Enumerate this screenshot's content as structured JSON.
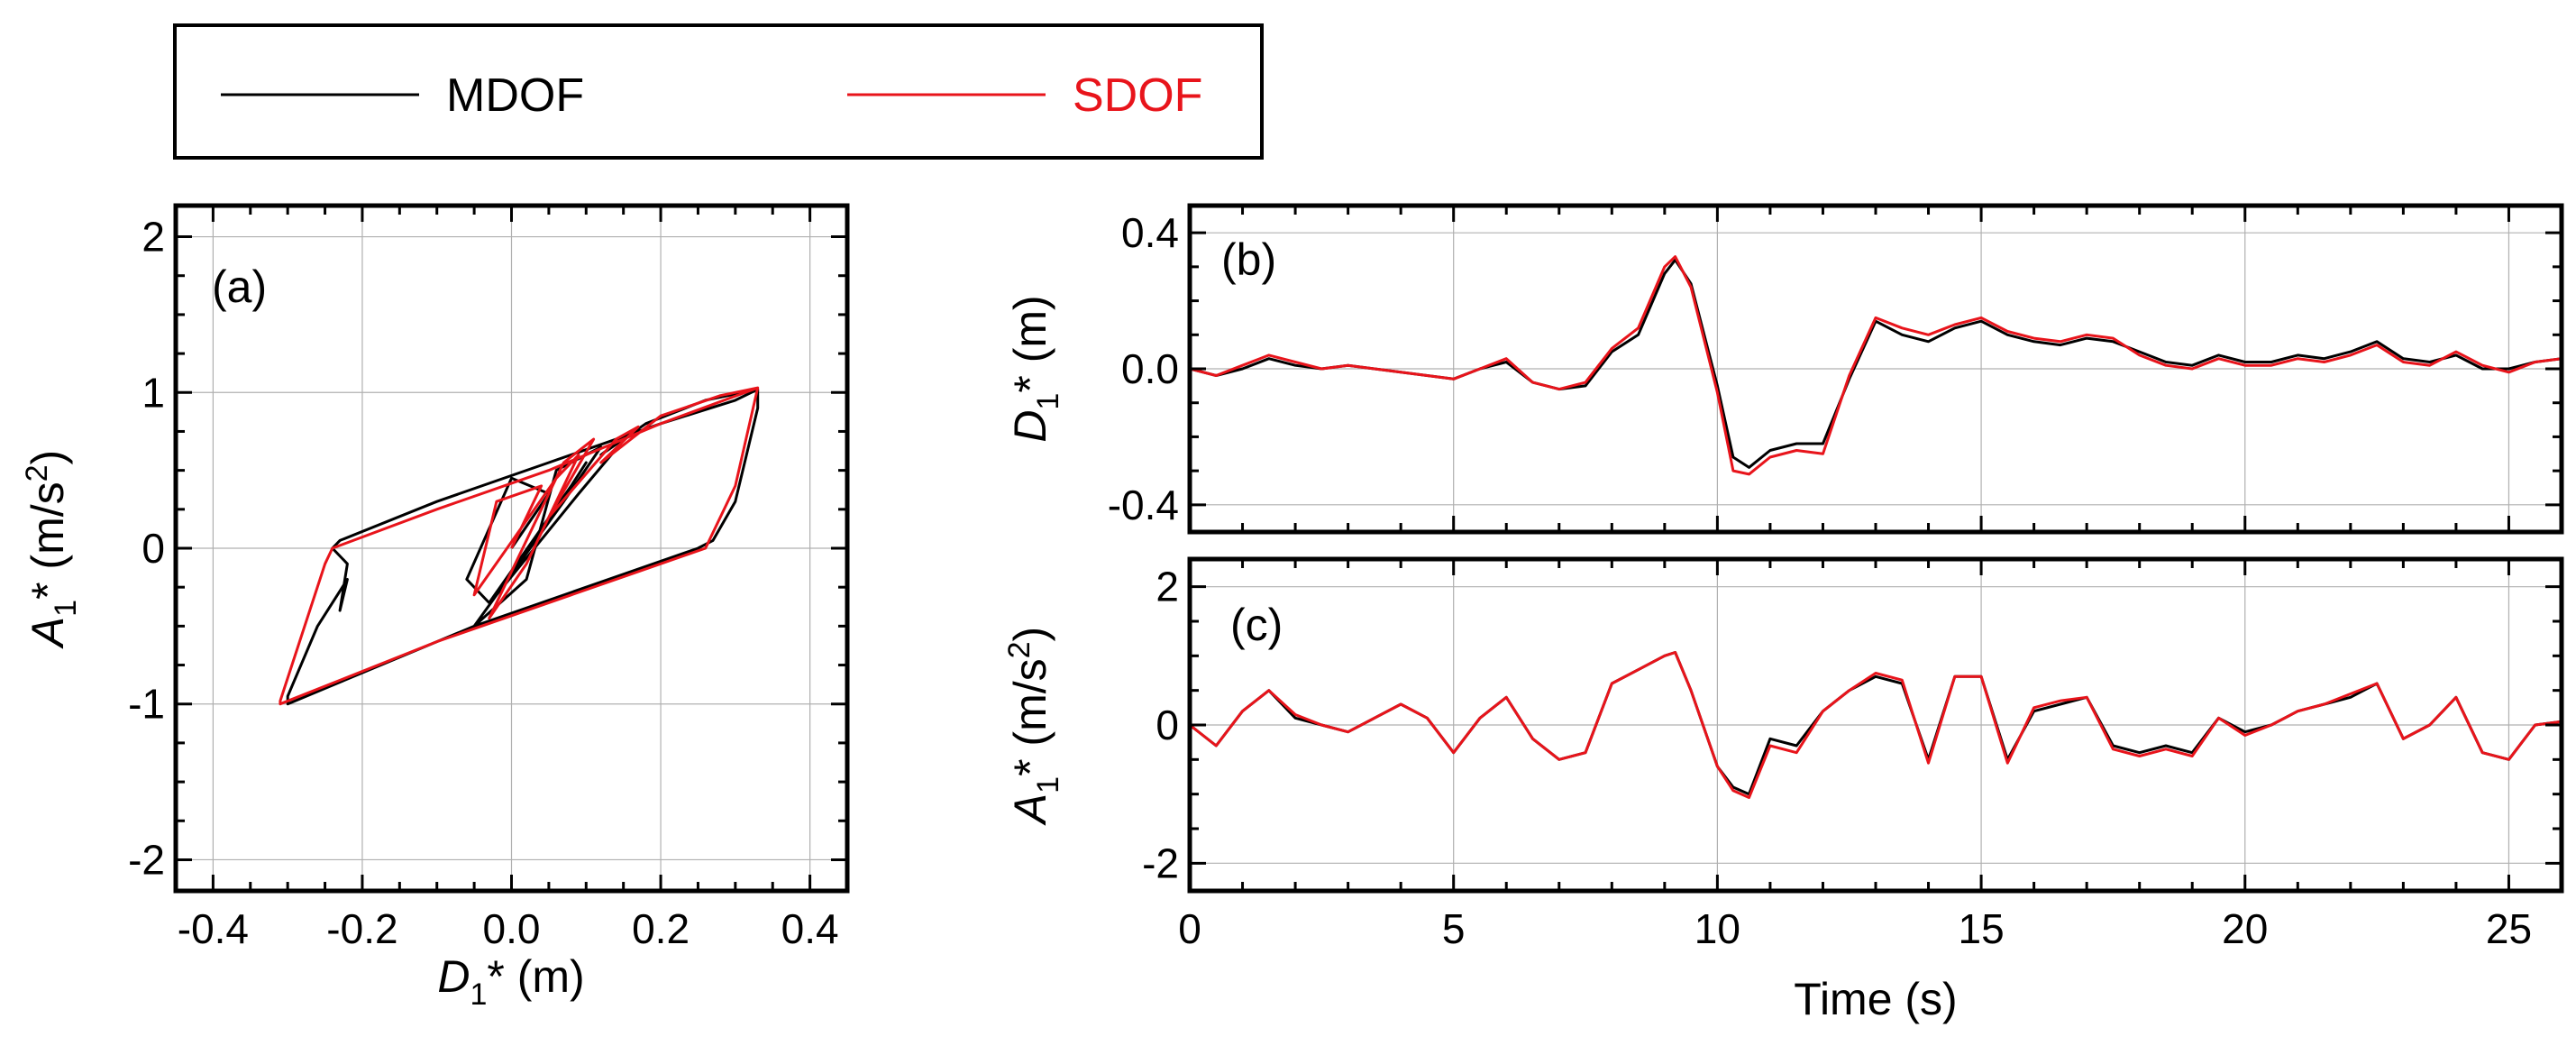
{
  "legend": {
    "items": [
      {
        "label": "MDOF",
        "color": "#000000"
      },
      {
        "label": "SDOF",
        "color": "#e8141b"
      }
    ]
  },
  "chart_data": [
    {
      "id": "a",
      "type": "line",
      "panel_label": "(a)",
      "xlabel": "D1* (m)",
      "ylabel": "A1* (m/s2)",
      "xlim": [
        -0.45,
        0.45
      ],
      "ylim": [
        -2.2,
        2.2
      ],
      "xticks": [
        -0.4,
        -0.2,
        0.0,
        0.2,
        0.4
      ],
      "xtick_labels": [
        "-0.4",
        "-0.2",
        "0.0",
        "0.2",
        "0.4"
      ],
      "yticks": [
        -2,
        -1,
        0,
        1,
        2
      ],
      "ytick_labels": [
        "-2",
        "-1",
        "0",
        "1",
        "2"
      ],
      "grid": true,
      "series": [
        {
          "name": "MDOF",
          "color": "#000000",
          "x": [
            0.0,
            0.05,
            0.0,
            -0.06,
            -0.03,
            0.08,
            0.1,
            0.04,
            -0.05,
            0.02,
            0.06,
            0.12,
            0.07,
            -0.02,
            0.09,
            0.16,
            0.12,
            0.18,
            0.26,
            0.33,
            0.33,
            0.3,
            0.27,
            0.25,
            -0.05,
            -0.15,
            -0.3,
            -0.3,
            -0.26,
            -0.22,
            -0.23,
            -0.22,
            -0.24,
            -0.23,
            -0.1,
            0.05,
            0.2,
            0.3,
            0.33
          ],
          "y": [
            0.0,
            0.35,
            0.45,
            -0.2,
            -0.35,
            0.4,
            0.55,
            0.1,
            -0.5,
            -0.2,
            0.5,
            0.65,
            0.3,
            -0.3,
            0.35,
            0.75,
            0.6,
            0.8,
            0.95,
            1.02,
            0.9,
            0.3,
            0.05,
            0.0,
            -0.5,
            -0.7,
            -1.0,
            -0.95,
            -0.5,
            -0.2,
            -0.4,
            -0.1,
            0.0,
            0.05,
            0.3,
            0.55,
            0.8,
            0.95,
            1.02
          ]
        },
        {
          "name": "SDOF",
          "color": "#e8141b",
          "x": [
            0.0,
            0.04,
            -0.02,
            -0.05,
            0.06,
            0.09,
            0.02,
            -0.03,
            0.07,
            0.11,
            0.05,
            0.14,
            0.17,
            0.12,
            0.2,
            0.28,
            0.33,
            0.3,
            0.26,
            -0.1,
            -0.31,
            -0.31,
            -0.25,
            -0.24,
            -0.1,
            0.05,
            0.2,
            0.33
          ],
          "y": [
            0.0,
            0.4,
            0.3,
            -0.3,
            0.45,
            0.6,
            -0.1,
            -0.45,
            0.55,
            0.7,
            0.2,
            0.7,
            0.78,
            0.55,
            0.85,
            0.98,
            1.03,
            0.4,
            0.0,
            -0.6,
            -1.0,
            -0.98,
            -0.1,
            0.0,
            0.25,
            0.5,
            0.8,
            1.03
          ]
        }
      ]
    },
    {
      "id": "b",
      "type": "line",
      "panel_label": "(b)",
      "xlabel": "",
      "ylabel": "D1* (m)",
      "xlim": [
        0,
        26
      ],
      "ylim": [
        -0.48,
        0.48
      ],
      "xticks": [
        0,
        5,
        10,
        15,
        20,
        25
      ],
      "yticks": [
        -0.4,
        0.0,
        0.4
      ],
      "ytick_labels": [
        "-0.4",
        "0.0",
        "0.4"
      ],
      "grid": true,
      "series": [
        {
          "name": "MDOF",
          "color": "#000000",
          "x": [
            0,
            0.5,
            1,
            1.5,
            2,
            2.5,
            3,
            3.5,
            4,
            4.5,
            5,
            5.5,
            6,
            6.5,
            7,
            7.5,
            8,
            8.5,
            9,
            9.2,
            9.5,
            10,
            10.3,
            10.6,
            11,
            11.5,
            12,
            12.5,
            13,
            13.5,
            14,
            14.5,
            15,
            15.5,
            16,
            16.5,
            17,
            17.5,
            18,
            18.5,
            19,
            19.5,
            20,
            20.5,
            21,
            21.5,
            22,
            22.5,
            23,
            23.5,
            24,
            24.5,
            25,
            25.5,
            26
          ],
          "y": [
            0.0,
            -0.02,
            0.0,
            0.03,
            0.01,
            0.0,
            0.01,
            0.0,
            -0.01,
            -0.02,
            -0.03,
            0.0,
            0.02,
            -0.04,
            -0.06,
            -0.05,
            0.05,
            0.1,
            0.28,
            0.32,
            0.25,
            -0.05,
            -0.26,
            -0.29,
            -0.24,
            -0.22,
            -0.22,
            -0.03,
            0.14,
            0.1,
            0.08,
            0.12,
            0.14,
            0.1,
            0.08,
            0.07,
            0.09,
            0.08,
            0.05,
            0.02,
            0.01,
            0.04,
            0.02,
            0.02,
            0.04,
            0.03,
            0.05,
            0.08,
            0.03,
            0.02,
            0.04,
            0.0,
            0.0,
            0.02,
            0.03
          ]
        },
        {
          "name": "SDOF",
          "color": "#e8141b",
          "x": [
            0,
            0.5,
            1,
            1.5,
            2,
            2.5,
            3,
            3.5,
            4,
            4.5,
            5,
            5.5,
            6,
            6.5,
            7,
            7.5,
            8,
            8.5,
            9,
            9.2,
            9.5,
            10,
            10.3,
            10.6,
            11,
            11.5,
            12,
            12.5,
            13,
            13.5,
            14,
            14.5,
            15,
            15.5,
            16,
            16.5,
            17,
            17.5,
            18,
            18.5,
            19,
            19.5,
            20,
            20.5,
            21,
            21.5,
            22,
            22.5,
            23,
            23.5,
            24,
            24.5,
            25,
            25.5,
            26
          ],
          "y": [
            0.0,
            -0.02,
            0.01,
            0.04,
            0.02,
            0.0,
            0.01,
            0.0,
            -0.01,
            -0.02,
            -0.03,
            0.0,
            0.03,
            -0.04,
            -0.06,
            -0.04,
            0.06,
            0.12,
            0.3,
            0.33,
            0.24,
            -0.07,
            -0.3,
            -0.31,
            -0.26,
            -0.24,
            -0.25,
            -0.02,
            0.15,
            0.12,
            0.1,
            0.13,
            0.15,
            0.11,
            0.09,
            0.08,
            0.1,
            0.09,
            0.04,
            0.01,
            0.0,
            0.03,
            0.01,
            0.01,
            0.03,
            0.02,
            0.04,
            0.07,
            0.02,
            0.01,
            0.05,
            0.01,
            -0.01,
            0.02,
            0.03
          ]
        }
      ]
    },
    {
      "id": "c",
      "type": "line",
      "panel_label": "(c)",
      "xlabel": "Time (s)",
      "ylabel": "A1* (m/s2)",
      "xlim": [
        0,
        26
      ],
      "ylim": [
        -2.4,
        2.4
      ],
      "xticks": [
        0,
        5,
        10,
        15,
        20,
        25
      ],
      "xtick_labels": [
        "0",
        "5",
        "10",
        "15",
        "20",
        "25"
      ],
      "yticks": [
        -2,
        0,
        2
      ],
      "ytick_labels": [
        "-2",
        "0",
        "2"
      ],
      "grid": true,
      "series": [
        {
          "name": "MDOF",
          "color": "#000000",
          "x": [
            0,
            0.5,
            1,
            1.5,
            2,
            2.5,
            3,
            3.5,
            4,
            4.5,
            5,
            5.5,
            6,
            6.5,
            7,
            7.5,
            8,
            8.5,
            9,
            9.2,
            9.5,
            10,
            10.3,
            10.6,
            11,
            11.5,
            12,
            12.5,
            13,
            13.5,
            14,
            14.5,
            15,
            15.5,
            16,
            16.5,
            17,
            17.5,
            18,
            18.5,
            19,
            19.5,
            20,
            20.5,
            21,
            21.5,
            22,
            22.5,
            23,
            23.5,
            24,
            24.5,
            25,
            25.5,
            26
          ],
          "y": [
            0.0,
            -0.3,
            0.2,
            0.5,
            0.1,
            0.0,
            -0.1,
            0.1,
            0.3,
            0.1,
            -0.4,
            0.1,
            0.4,
            -0.2,
            -0.5,
            -0.4,
            0.6,
            0.8,
            1.0,
            1.05,
            0.5,
            -0.6,
            -0.9,
            -1.0,
            -0.2,
            -0.3,
            0.2,
            0.5,
            0.7,
            0.6,
            -0.5,
            0.7,
            0.7,
            -0.5,
            0.2,
            0.3,
            0.4,
            -0.3,
            -0.4,
            -0.3,
            -0.4,
            0.1,
            -0.1,
            0.0,
            0.2,
            0.3,
            0.4,
            0.6,
            -0.2,
            0.0,
            0.4,
            -0.4,
            -0.5,
            0.0,
            0.05
          ]
        },
        {
          "name": "SDOF",
          "color": "#e8141b",
          "x": [
            0,
            0.5,
            1,
            1.5,
            2,
            2.5,
            3,
            3.5,
            4,
            4.5,
            5,
            5.5,
            6,
            6.5,
            7,
            7.5,
            8,
            8.5,
            9,
            9.2,
            9.5,
            10,
            10.3,
            10.6,
            11,
            11.5,
            12,
            12.5,
            13,
            13.5,
            14,
            14.5,
            15,
            15.5,
            16,
            16.5,
            17,
            17.5,
            18,
            18.5,
            19,
            19.5,
            20,
            20.5,
            21,
            21.5,
            22,
            22.5,
            23,
            23.5,
            24,
            24.5,
            25,
            25.5,
            26
          ],
          "y": [
            0.0,
            -0.3,
            0.2,
            0.5,
            0.15,
            0.0,
            -0.1,
            0.1,
            0.3,
            0.1,
            -0.4,
            0.1,
            0.4,
            -0.2,
            -0.5,
            -0.4,
            0.6,
            0.8,
            1.0,
            1.05,
            0.5,
            -0.6,
            -0.95,
            -1.05,
            -0.3,
            -0.4,
            0.2,
            0.5,
            0.75,
            0.65,
            -0.55,
            0.7,
            0.7,
            -0.55,
            0.25,
            0.35,
            0.4,
            -0.35,
            -0.45,
            -0.35,
            -0.45,
            0.1,
            -0.15,
            0.0,
            0.2,
            0.3,
            0.45,
            0.6,
            -0.2,
            0.0,
            0.4,
            -0.4,
            -0.5,
            0.0,
            0.05
          ]
        }
      ]
    }
  ]
}
